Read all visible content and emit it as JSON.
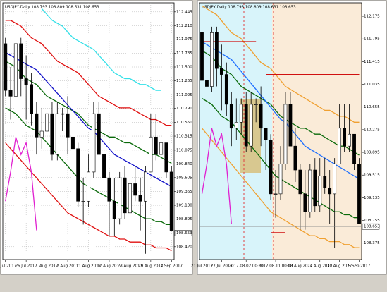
{
  "chart_data": [
    {
      "type": "candlestick",
      "title": "USDJPY,Daily 108.793 108.809 108.631 108.653",
      "grid": true,
      "categories": [
        "20 Jul 2017",
        null,
        null,
        null,
        "26 Jul 2017",
        null,
        null,
        null,
        "1 Aug 2017",
        null,
        null,
        null,
        "7 Aug 2017",
        null,
        null,
        null,
        "11 Aug 2017",
        null,
        null,
        null,
        "17 Aug 2017",
        null,
        null,
        null,
        "23 Aug 2017",
        null,
        null,
        null,
        "29 Aug 2017",
        null,
        null,
        null,
        "4 Sep 2017"
      ],
      "open": [
        111.9,
        111.1,
        111.0,
        111.9,
        111.3,
        111.2,
        110.7,
        110.3,
        110.4,
        110.7,
        110.0,
        110.7,
        110.7,
        110.3,
        110.1,
        109.2,
        109.2,
        109.7,
        110.7,
        110.0,
        109.6,
        109.2,
        108.9,
        109.6,
        109.0,
        109.5,
        109.3,
        109.2,
        109.7,
        110.3,
        110.0,
        110.2,
        109.7
      ],
      "high": [
        112.0,
        111.5,
        112.0,
        112.0,
        111.7,
        111.4,
        110.9,
        110.8,
        110.8,
        110.9,
        110.9,
        110.8,
        111.0,
        110.3,
        110.2,
        109.6,
        110.0,
        110.9,
        110.9,
        110.3,
        109.7,
        109.6,
        109.7,
        109.8,
        109.8,
        109.8,
        109.6,
        109.8,
        110.7,
        110.7,
        110.7,
        110.2,
        109.8
      ],
      "low": [
        111.0,
        110.6,
        110.9,
        111.0,
        110.6,
        110.5,
        110.0,
        110.1,
        110.2,
        109.9,
        109.9,
        110.4,
        110.0,
        109.6,
        109.1,
        108.8,
        109.1,
        109.6,
        110.0,
        109.4,
        108.6,
        108.6,
        108.8,
        108.9,
        108.9,
        109.2,
        108.7,
        108.3,
        109.7,
        109.9,
        109.9,
        109.6,
        108.7
      ],
      "close": [
        111.1,
        111.0,
        111.9,
        111.3,
        111.2,
        110.7,
        110.3,
        110.4,
        110.7,
        110.0,
        110.7,
        110.7,
        110.3,
        110.1,
        109.2,
        109.2,
        109.7,
        110.7,
        110.0,
        109.6,
        109.2,
        108.9,
        109.6,
        109.0,
        109.5,
        109.3,
        109.2,
        109.7,
        110.3,
        110.0,
        110.2,
        109.7,
        108.7
      ],
      "series": [
        {
          "color": "#33e0e8",
          "values": [
            null,
            null,
            null,
            null,
            null,
            null,
            null,
            112.5,
            112.4,
            112.3,
            112.25,
            112.2,
            112.1,
            112.0,
            111.95,
            111.9,
            111.85,
            111.8,
            111.7,
            111.6,
            111.5,
            111.4,
            111.35,
            111.3,
            111.3,
            111.25,
            111.2,
            111.2,
            111.15,
            111.1,
            111.1,
            null,
            null
          ]
        },
        {
          "color": "#e01010",
          "values": [
            112.3,
            112.3,
            112.25,
            112.2,
            112.1,
            112.0,
            111.95,
            111.9,
            111.8,
            111.7,
            111.6,
            111.55,
            111.5,
            111.45,
            111.4,
            111.3,
            111.2,
            111.1,
            111.0,
            110.95,
            110.9,
            110.85,
            110.8,
            110.8,
            110.8,
            110.75,
            110.7,
            110.65,
            110.6,
            110.6,
            110.55,
            110.5,
            110.5
          ]
        },
        {
          "color": "#0a6a0a",
          "values": [
            111.6,
            111.55,
            111.5,
            111.4,
            111.3,
            111.25,
            111.2,
            111.1,
            111.0,
            110.95,
            110.9,
            110.85,
            110.8,
            110.75,
            110.7,
            110.6,
            110.5,
            110.45,
            110.4,
            110.35,
            110.3,
            110.3,
            110.25,
            110.2,
            110.2,
            110.15,
            110.1,
            110.05,
            110.0,
            110.0,
            109.95,
            109.9,
            109.85
          ]
        },
        {
          "color": "#1010c8",
          "values": [
            111.75,
            111.7,
            111.65,
            111.6,
            111.55,
            111.5,
            111.45,
            111.35,
            111.25,
            111.15,
            111.05,
            110.95,
            110.85,
            110.75,
            110.65,
            110.55,
            110.45,
            110.4,
            110.3,
            110.2,
            110.1,
            110.0,
            109.95,
            109.9,
            109.85,
            109.8,
            109.75,
            109.7,
            109.65,
            109.6,
            109.55,
            109.5,
            109.45
          ]
        },
        {
          "color": "#0a6a0a",
          "values": [
            110.8,
            110.75,
            110.7,
            110.6,
            110.5,
            110.45,
            110.4,
            110.3,
            110.2,
            110.1,
            110.0,
            109.9,
            109.8,
            109.7,
            109.6,
            109.5,
            109.45,
            109.4,
            109.35,
            109.3,
            109.25,
            109.2,
            109.15,
            109.1,
            109.05,
            109.0,
            108.95,
            108.9,
            108.9,
            108.85,
            108.85,
            108.8,
            108.8
          ]
        },
        {
          "color": "#e01010",
          "values": [
            110.2,
            110.1,
            110.0,
            109.9,
            109.8,
            109.7,
            109.6,
            109.5,
            109.4,
            109.3,
            109.2,
            109.1,
            109.0,
            108.95,
            108.9,
            108.85,
            108.8,
            108.75,
            108.7,
            108.65,
            108.6,
            108.6,
            108.55,
            108.55,
            108.5,
            108.5,
            108.5,
            108.45,
            108.45,
            108.4,
            108.4,
            108.4,
            108.35
          ]
        },
        {
          "color": "#e020d0",
          "values": [
            109.2,
            109.7,
            110.3,
            110.0,
            110.2,
            109.7,
            108.7,
            null,
            null,
            null,
            null,
            null,
            null,
            null,
            null,
            null,
            null,
            null,
            null,
            null,
            null,
            null,
            null,
            null,
            null,
            null,
            null,
            null,
            null,
            null,
            null,
            null,
            null
          ]
        }
      ],
      "ylim": [
        108.2,
        112.6
      ],
      "yticks": [
        112.445,
        {
          "value": 112.21,
          "label": "112.210"
        },
        111.975,
        111.735,
        {
          "value": 111.5,
          "label": "111.500"
        },
        111.265,
        111.025,
        {
          "value": 110.79,
          "label": "110.790"
        },
        {
          "value": 110.55,
          "label": "110.550"
        },
        110.315,
        110.075,
        {
          "value": 109.84,
          "label": "109.840"
        },
        109.605,
        109.365,
        {
          "value": 109.13,
          "label": "109.130"
        },
        108.895,
        {
          "value": 108.42,
          "label": "108.420"
        }
      ],
      "price_label": 108.653
    },
    {
      "type": "candlestick",
      "title": "USDJPY,Daily 108.793 108.809 108.631 108.653",
      "grid": false,
      "categories": [
        "21 Jul 2017",
        null,
        null,
        null,
        "27 Jul 2017",
        null,
        null,
        null,
        null,
        "2017.08.02 00:00",
        null,
        null,
        null,
        null,
        null,
        "2017.08.11 00:00",
        null,
        null,
        null,
        null,
        "18 Aug 2017",
        null,
        null,
        null,
        "24 Aug 2017",
        null,
        null,
        null,
        "30 Aug 2017",
        null,
        null,
        null,
        "5 Sep 2017"
      ],
      "open": [
        111.9,
        111.1,
        111.0,
        111.9,
        111.3,
        111.2,
        110.7,
        110.3,
        110.4,
        110.7,
        110.0,
        110.7,
        110.7,
        110.3,
        110.1,
        109.2,
        109.2,
        109.7,
        110.7,
        110.0,
        109.6,
        109.2,
        108.9,
        109.6,
        109.0,
        109.5,
        109.3,
        109.2,
        109.7,
        110.3,
        110.0,
        110.2,
        109.7
      ],
      "high": [
        112.0,
        111.5,
        112.0,
        112.0,
        111.7,
        111.4,
        110.9,
        110.8,
        110.8,
        110.9,
        110.9,
        110.8,
        111.0,
        110.3,
        110.2,
        109.6,
        110.0,
        110.9,
        110.9,
        110.3,
        109.7,
        109.6,
        109.7,
        109.8,
        109.8,
        109.8,
        109.6,
        109.8,
        110.7,
        110.7,
        110.7,
        110.2,
        109.8
      ],
      "low": [
        111.0,
        110.6,
        110.9,
        111.0,
        110.6,
        110.5,
        110.0,
        110.1,
        110.2,
        109.9,
        109.9,
        110.4,
        110.0,
        109.6,
        109.1,
        108.8,
        109.1,
        109.6,
        110.0,
        109.4,
        108.6,
        108.6,
        108.8,
        108.9,
        108.9,
        109.2,
        108.7,
        108.3,
        109.7,
        109.9,
        109.9,
        109.6,
        108.7
      ],
      "close": [
        111.1,
        111.0,
        111.9,
        111.3,
        111.2,
        110.7,
        110.3,
        110.4,
        110.7,
        110.0,
        110.7,
        110.7,
        110.3,
        110.1,
        109.2,
        109.2,
        109.7,
        110.7,
        110.0,
        109.6,
        109.2,
        108.9,
        109.6,
        109.0,
        109.5,
        109.3,
        109.2,
        109.7,
        110.3,
        110.0,
        110.2,
        109.7,
        108.7
      ],
      "series": [
        {
          "color": "#f0a030",
          "values": [
            112.35,
            112.3,
            112.25,
            112.2,
            112.1,
            112.0,
            111.9,
            111.85,
            111.8,
            111.7,
            111.6,
            111.5,
            111.4,
            111.35,
            111.3,
            111.2,
            111.1,
            111.0,
            110.95,
            110.9,
            110.85,
            110.8,
            110.75,
            110.7,
            110.65,
            110.6,
            110.6,
            110.55,
            110.5,
            110.5,
            110.45,
            110.4,
            110.4
          ]
        },
        {
          "color": "#0a6a0a",
          "values": [
            111.6,
            111.55,
            111.5,
            111.4,
            111.3,
            111.25,
            111.2,
            111.1,
            111.0,
            110.95,
            110.9,
            110.85,
            110.8,
            110.75,
            110.7,
            110.6,
            110.5,
            110.45,
            110.4,
            110.35,
            110.3,
            110.3,
            110.25,
            110.2,
            110.2,
            110.15,
            110.1,
            110.05,
            110.0,
            110.0,
            109.95,
            109.9,
            109.85
          ]
        },
        {
          "color": "#1e6fff",
          "values": [
            111.75,
            111.7,
            111.65,
            111.6,
            111.55,
            111.5,
            111.45,
            111.35,
            111.25,
            111.15,
            111.05,
            110.95,
            110.85,
            110.75,
            110.65,
            110.55,
            110.45,
            110.4,
            110.3,
            110.2,
            110.1,
            110.0,
            109.95,
            109.9,
            109.85,
            109.8,
            109.75,
            109.7,
            109.65,
            109.6,
            109.55,
            109.5,
            109.45
          ]
        },
        {
          "color": "#0a6a0a",
          "values": [
            110.8,
            110.75,
            110.7,
            110.6,
            110.5,
            110.45,
            110.4,
            110.3,
            110.2,
            110.1,
            110.0,
            109.9,
            109.8,
            109.7,
            109.6,
            109.5,
            109.45,
            109.4,
            109.35,
            109.3,
            109.25,
            109.2,
            109.15,
            109.1,
            109.05,
            109.0,
            108.95,
            108.9,
            108.9,
            108.85,
            108.85,
            108.8,
            108.8
          ]
        },
        {
          "color": "#f0a030",
          "values": [
            110.3,
            110.2,
            110.1,
            110.0,
            109.9,
            109.8,
            109.7,
            109.6,
            109.5,
            109.4,
            109.3,
            109.2,
            109.1,
            109.0,
            108.9,
            108.85,
            108.8,
            108.75,
            108.7,
            108.65,
            108.6,
            108.55,
            108.5,
            108.5,
            108.45,
            108.45,
            108.4,
            108.4,
            108.4,
            108.35,
            108.35,
            108.3,
            108.3
          ]
        },
        {
          "color": "#d01010",
          "values": [
            111.75,
            111.75,
            111.75,
            111.75,
            111.75,
            111.75,
            111.75,
            111.75,
            111.75,
            111.75,
            111.75,
            111.75,
            null,
            null,
            null,
            null,
            null,
            null,
            null,
            null,
            null,
            null,
            null,
            null,
            null,
            null,
            null,
            null,
            null,
            null,
            null,
            null,
            null
          ]
        },
        {
          "color": "#d01010",
          "values": [
            null,
            null,
            null,
            null,
            null,
            null,
            null,
            null,
            null,
            null,
            null,
            null,
            null,
            111.2,
            111.2,
            111.2,
            111.2,
            111.2,
            111.2,
            111.2,
            111.2,
            111.2,
            111.2,
            111.2,
            111.2,
            111.2,
            111.2,
            111.2,
            111.2,
            111.2,
            111.2,
            111.2,
            111.2
          ]
        },
        {
          "color": "#d01010",
          "values": [
            null,
            null,
            null,
            null,
            null,
            null,
            null,
            null,
            null,
            null,
            null,
            null,
            null,
            null,
            108.55,
            108.55,
            108.55,
            108.55,
            null,
            null,
            null,
            null,
            null,
            null,
            null,
            null,
            null,
            null,
            null,
            null,
            null,
            null,
            null
          ]
        },
        {
          "color": "#e020d0",
          "values": [
            109.2,
            109.7,
            110.3,
            110.0,
            110.2,
            109.7,
            108.7,
            null,
            null,
            null,
            null,
            null,
            null,
            null,
            null,
            null,
            null,
            null,
            null,
            null,
            null,
            null,
            null,
            null,
            null,
            null,
            null,
            null,
            null,
            null,
            null,
            null,
            null
          ]
        }
      ],
      "ylim": [
        108.1,
        112.4
      ],
      "yticks": [
        112.175,
        111.795,
        111.415,
        111.035,
        110.655,
        110.275,
        109.895,
        109.515,
        109.135,
        108.755,
        108.375
      ],
      "price_label": 108.653
    }
  ]
}
